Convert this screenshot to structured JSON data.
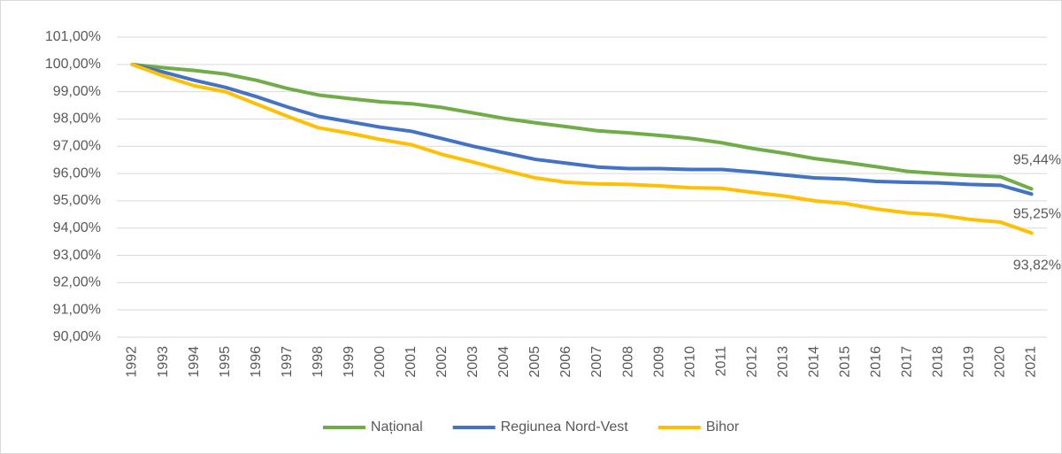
{
  "chart_data": {
    "type": "line",
    "categories": [
      "1992",
      "1993",
      "1994",
      "1995",
      "1996",
      "1997",
      "1998",
      "1999",
      "2000",
      "2001",
      "2002",
      "2003",
      "2004",
      "2005",
      "2006",
      "2007",
      "2008",
      "2009",
      "2010",
      "2011",
      "2012",
      "2013",
      "2014",
      "2015",
      "2016",
      "2017",
      "2018",
      "2019",
      "2020",
      "2021"
    ],
    "series": [
      {
        "name": "Național",
        "color": "#70ad47",
        "values": [
          100,
          99.88,
          99.78,
          99.65,
          99.42,
          99.12,
          98.88,
          98.75,
          98.63,
          98.56,
          98.42,
          98.22,
          98.02,
          97.86,
          97.72,
          97.57,
          97.49,
          97.4,
          97.29,
          97.13,
          96.92,
          96.75,
          96.55,
          96.41,
          96.25,
          96.08,
          96.0,
          95.93,
          95.88,
          95.44
        ],
        "value_labels": [
          null,
          null,
          null,
          null,
          null,
          null,
          null,
          null,
          null,
          null,
          null,
          null,
          null,
          null,
          null,
          null,
          null,
          null,
          null,
          null,
          null,
          null,
          null,
          null,
          null,
          null,
          null,
          null,
          null,
          "95,44%"
        ]
      },
      {
        "name": "Regiunea Nord-Vest",
        "color": "#4472c4",
        "values": [
          100,
          99.72,
          99.42,
          99.16,
          98.82,
          98.44,
          98.1,
          97.9,
          97.7,
          97.55,
          97.28,
          97.0,
          96.76,
          96.52,
          96.38,
          96.24,
          96.18,
          96.18,
          96.15,
          96.15,
          96.06,
          95.95,
          95.84,
          95.8,
          95.71,
          95.68,
          95.66,
          95.6,
          95.57,
          95.25
        ],
        "value_labels": [
          null,
          null,
          null,
          null,
          null,
          null,
          null,
          null,
          null,
          null,
          null,
          null,
          null,
          null,
          null,
          null,
          null,
          null,
          null,
          null,
          null,
          null,
          null,
          null,
          null,
          null,
          null,
          null,
          null,
          "95,25%"
        ]
      },
      {
        "name": "Bihor",
        "color": "#ffc000",
        "values": [
          100,
          99.58,
          99.22,
          99.0,
          98.55,
          98.1,
          97.68,
          97.48,
          97.25,
          97.06,
          96.7,
          96.42,
          96.12,
          95.84,
          95.68,
          95.62,
          95.6,
          95.55,
          95.48,
          95.46,
          95.31,
          95.18,
          95.0,
          94.9,
          94.7,
          94.56,
          94.48,
          94.32,
          94.22,
          93.82
        ],
        "value_labels": [
          null,
          null,
          null,
          null,
          null,
          null,
          null,
          null,
          null,
          null,
          null,
          null,
          null,
          null,
          null,
          null,
          null,
          null,
          null,
          null,
          null,
          null,
          null,
          null,
          null,
          null,
          null,
          null,
          null,
          "93,82%"
        ]
      }
    ],
    "ylim": [
      90,
      101
    ],
    "yticks": [
      {
        "value": 90,
        "label": "90,00%"
      },
      {
        "value": 91,
        "label": "91,00%"
      },
      {
        "value": 92,
        "label": "92,00%"
      },
      {
        "value": 93,
        "label": "93,00%"
      },
      {
        "value": 94,
        "label": "94,00%"
      },
      {
        "value": 95,
        "label": "95,00%"
      },
      {
        "value": 96,
        "label": "96,00%"
      },
      {
        "value": 97,
        "label": "97,00%"
      },
      {
        "value": 98,
        "label": "98,00%"
      },
      {
        "value": 99,
        "label": "99,00%"
      },
      {
        "value": 100,
        "label": "100,00%"
      },
      {
        "value": 101,
        "label": "101,00%"
      }
    ],
    "grid": true,
    "legend": "bottom"
  }
}
